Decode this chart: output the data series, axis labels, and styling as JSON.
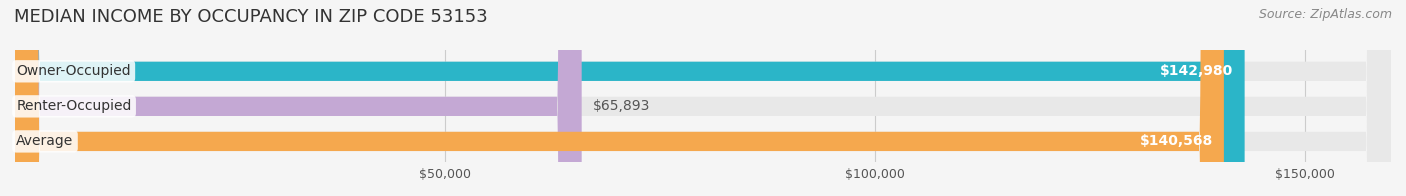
{
  "title": "MEDIAN INCOME BY OCCUPANCY IN ZIP CODE 53153",
  "source": "Source: ZipAtlas.com",
  "categories": [
    "Owner-Occupied",
    "Renter-Occupied",
    "Average"
  ],
  "values": [
    142980,
    65893,
    140568
  ],
  "bar_colors": [
    "#2bb5c8",
    "#c4a8d4",
    "#f5a84e"
  ],
  "bar_labels": [
    "$142,980",
    "$65,893",
    "$140,568"
  ],
  "label_colors": [
    "#ffffff",
    "#555555",
    "#ffffff"
  ],
  "background_color": "#f5f5f5",
  "bar_bg_color": "#e8e8e8",
  "xlim": [
    0,
    160000
  ],
  "xticks": [
    50000,
    100000,
    150000
  ],
  "xtick_labels": [
    "$50,000",
    "$100,000",
    "$150,000"
  ],
  "bar_height": 0.55,
  "title_fontsize": 13,
  "source_fontsize": 9,
  "label_fontsize": 10,
  "tick_fontsize": 9,
  "cat_fontsize": 10
}
